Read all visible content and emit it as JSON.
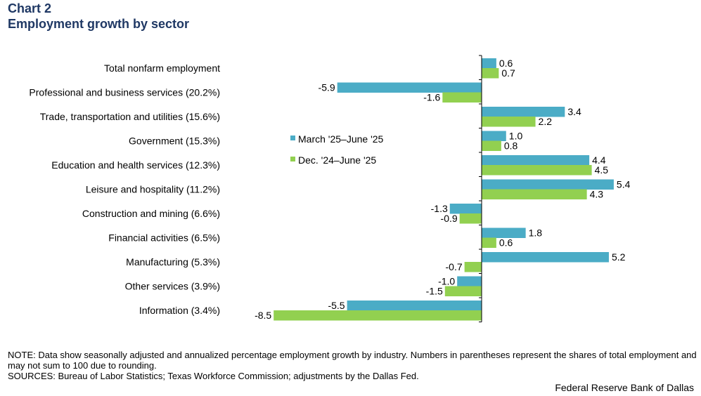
{
  "header": {
    "chart_number": "Chart 2",
    "title": "Employment growth by sector"
  },
  "chart_data": {
    "type": "bar",
    "orientation": "horizontal",
    "categories": [
      "Total nonfarm employment",
      "Professional and business services (20.2%)",
      "Trade, transportation and utilities (15.6%)",
      "Government  (15.3%)",
      "Education and health services (12.3%)",
      "Leisure and hospitality (11.2%)",
      "Construction and mining (6.6%)",
      "Financial activities  (6.5%)",
      "Manufacturing  (5.3%)",
      "Other services  (3.9%)",
      "Information  (3.4%)"
    ],
    "series": [
      {
        "name": "March '25–June '25",
        "color": "#4bacc6",
        "values": [
          0.6,
          -5.9,
          3.4,
          1.0,
          4.4,
          5.4,
          -1.3,
          1.8,
          5.2,
          -1.0,
          -5.5
        ],
        "labels": [
          "0.6",
          "-5.9",
          "3.4",
          "1.0",
          "4.4",
          "5.4",
          "-1.3",
          "1.8",
          "5.2",
          "-1.0",
          "-5.5"
        ]
      },
      {
        "name": "Dec. '24–June '25",
        "color": "#92d050",
        "values": [
          0.7,
          -1.6,
          2.2,
          0.8,
          4.5,
          4.3,
          -0.9,
          0.6,
          -0.7,
          -1.5,
          -8.5
        ],
        "labels": [
          "0.7",
          "-1.6",
          "2.2",
          "0.8",
          "4.5",
          "4.3",
          "-0.9",
          "0.6",
          "-0.7",
          "-1.5",
          "-8.5"
        ]
      }
    ],
    "xlabel": "",
    "ylabel": "",
    "xlim": [
      -8.5,
      5.4
    ],
    "grid": false,
    "legend": "center"
  },
  "footer": {
    "note": "NOTE: Data show seasonally adjusted and annualized percentage employment growth by industry. Numbers in parentheses represent the shares of total employment and may not sum to 100 due to rounding.",
    "sources": "SOURCES: Bureau of Labor Statistics; Texas Workforce Commission; adjustments by the Dallas Fed.",
    "credit": "Federal Reserve Bank of Dallas"
  }
}
